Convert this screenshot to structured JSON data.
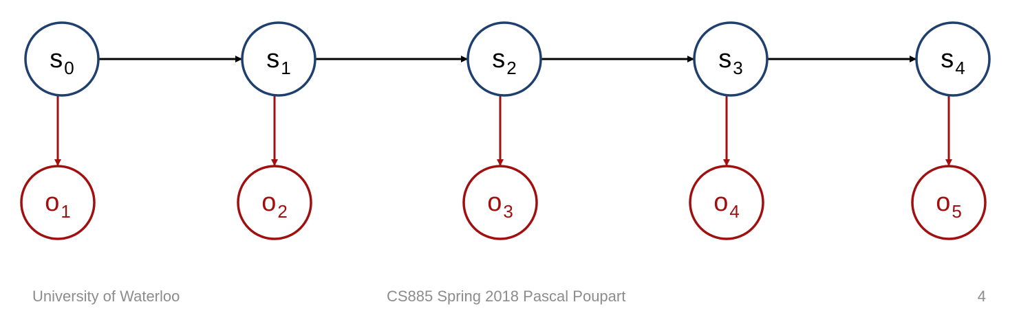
{
  "diagram": {
    "state_nodes": [
      {
        "letter": "s",
        "sub": "0"
      },
      {
        "letter": "s",
        "sub": "1"
      },
      {
        "letter": "s",
        "sub": "2"
      },
      {
        "letter": "s",
        "sub": "3"
      },
      {
        "letter": "s",
        "sub": "4"
      }
    ],
    "observation_nodes": [
      {
        "letter": "o",
        "sub": "1"
      },
      {
        "letter": "o",
        "sub": "2"
      },
      {
        "letter": "o",
        "sub": "3"
      },
      {
        "letter": "o",
        "sub": "4"
      },
      {
        "letter": "o",
        "sub": "5"
      }
    ],
    "colors": {
      "state_stroke": "#1f3f6e",
      "state_text": "#000000",
      "transition_arrow": "#000000",
      "observation_stroke": "#a01010",
      "observation_text": "#a01010",
      "emission_arrow": "#a01010"
    }
  },
  "footer": {
    "left": "University of Waterloo",
    "center": "CS885 Spring 2018 Pascal Poupart",
    "right": "4"
  }
}
